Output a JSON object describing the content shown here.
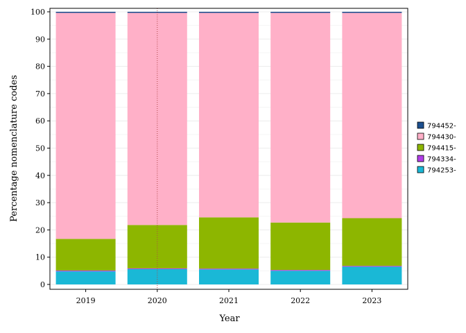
{
  "chart_data": {
    "type": "bar",
    "stacked": true,
    "xlabel": "Year",
    "ylabel": "Percentage nomenclature codes",
    "ylim": [
      0,
      100
    ],
    "yticks": [
      0,
      10,
      20,
      30,
      40,
      50,
      60,
      70,
      80,
      90,
      100
    ],
    "grid": true,
    "legend_position": "right",
    "categories": [
      "2019",
      "2020",
      "2021",
      "2022",
      "2023"
    ],
    "series": [
      {
        "name": "794253-",
        "color": "#1ab8d6",
        "values": [
          4.8,
          5.6,
          5.5,
          5.0,
          6.5
        ]
      },
      {
        "name": "794334-",
        "color": "#b23ee8",
        "values": [
          0.3,
          0.3,
          0.3,
          0.3,
          0.3
        ]
      },
      {
        "name": "794415-",
        "color": "#8db600",
        "values": [
          11.6,
          15.9,
          18.8,
          17.4,
          17.5
        ]
      },
      {
        "name": "794430-",
        "color": "#ffb0c8",
        "values": [
          82.9,
          77.8,
          75.0,
          76.9,
          75.3
        ]
      },
      {
        "name": "794452-",
        "color": "#1c4f8f",
        "values": [
          0.4,
          0.4,
          0.4,
          0.4,
          0.4
        ]
      }
    ],
    "reference_line": {
      "category": "2020",
      "style": "dotted",
      "color": "#b04848"
    }
  }
}
